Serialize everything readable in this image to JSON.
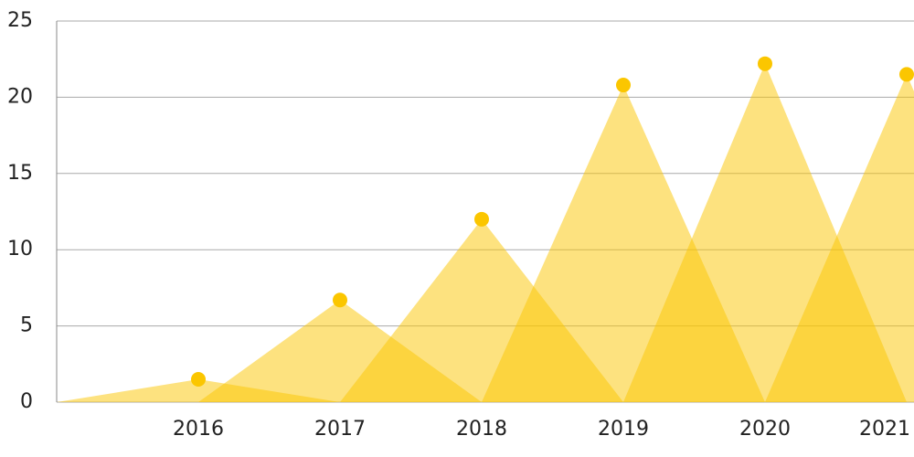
{
  "chart_data": {
    "type": "triangle",
    "categories": [
      "2016",
      "2017",
      "2018",
      "2019",
      "2020",
      "2021"
    ],
    "values": [
      1.5,
      6.7,
      12,
      20.8,
      22.2,
      21.5
    ],
    "color": "#fbc600",
    "ylim": [
      0,
      25
    ],
    "yticks": [
      0,
      5,
      10,
      15,
      20,
      25
    ],
    "grid": true
  }
}
